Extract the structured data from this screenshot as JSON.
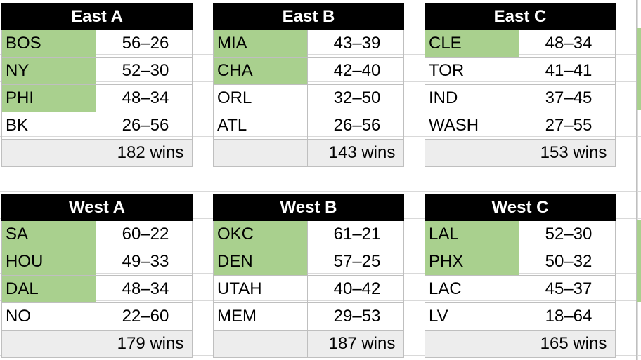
{
  "groups": [
    {
      "title": "East A",
      "teams": [
        {
          "name": "BOS",
          "record": "56–26",
          "highlight": true
        },
        {
          "name": "NY",
          "record": "52–30",
          "highlight": true
        },
        {
          "name": "PHI",
          "record": "48–34",
          "highlight": true
        },
        {
          "name": "BK",
          "record": "26–56",
          "highlight": false
        }
      ],
      "total": "182 wins"
    },
    {
      "title": "East B",
      "teams": [
        {
          "name": "MIA",
          "record": "43–39",
          "highlight": true
        },
        {
          "name": "CHA",
          "record": "42–40",
          "highlight": true
        },
        {
          "name": "ORL",
          "record": "32–50",
          "highlight": false
        },
        {
          "name": "ATL",
          "record": "26–56",
          "highlight": false
        }
      ],
      "total": "143 wins"
    },
    {
      "title": "East C",
      "teams": [
        {
          "name": "CLE",
          "record": "48–34",
          "highlight": true
        },
        {
          "name": "TOR",
          "record": "41–41",
          "highlight": false
        },
        {
          "name": "IND",
          "record": "37–45",
          "highlight": false
        },
        {
          "name": "WASH",
          "record": "27–55",
          "highlight": false
        }
      ],
      "total": "153 wins"
    },
    {
      "title": "West A",
      "teams": [
        {
          "name": "SA",
          "record": "60–22",
          "highlight": true
        },
        {
          "name": "HOU",
          "record": "49–33",
          "highlight": true
        },
        {
          "name": "DAL",
          "record": "48–34",
          "highlight": true
        },
        {
          "name": "NO",
          "record": "22–60",
          "highlight": false
        }
      ],
      "total": "179 wins"
    },
    {
      "title": "West B",
      "teams": [
        {
          "name": "OKC",
          "record": "61–21",
          "highlight": true
        },
        {
          "name": "DEN",
          "record": "57–25",
          "highlight": true
        },
        {
          "name": "UTAH",
          "record": "40–42",
          "highlight": false
        },
        {
          "name": "MEM",
          "record": "29–53",
          "highlight": false
        }
      ],
      "total": "187 wins"
    },
    {
      "title": "West C",
      "teams": [
        {
          "name": "LAL",
          "record": "52–30",
          "highlight": true
        },
        {
          "name": "PHX",
          "record": "50–32",
          "highlight": true
        },
        {
          "name": "LAC",
          "record": "45–37",
          "highlight": false
        },
        {
          "name": "LV",
          "record": "18–64",
          "highlight": false
        }
      ],
      "total": "165 wins"
    }
  ],
  "colors": {
    "header_bg": "#000000",
    "header_text": "#ffffff",
    "highlight": "#a9d08e",
    "total_bg": "#ededed"
  }
}
